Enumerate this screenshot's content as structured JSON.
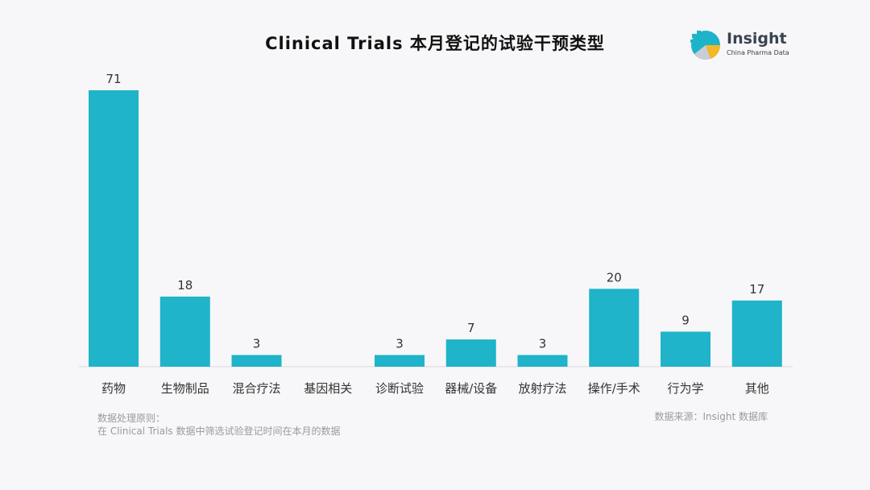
{
  "logo": {
    "name": "Insight",
    "subtitle": "China Pharma Data",
    "colors": [
      "#1db3c9",
      "#f3b924",
      "#c9ced6"
    ]
  },
  "footer": {
    "note_heading": "数据处理原则：",
    "note_text": "在 Clinical Trials 数据中筛选试验登记时间在本月的数据",
    "source": "数据来源：Insight 数据库"
  },
  "chart_data": {
    "type": "bar",
    "title": "Clinical Trials 本月登记的试验干预类型",
    "categories": [
      "药物",
      "生物制品",
      "混合疗法",
      "基因相关",
      "诊断试验",
      "器械/设备",
      "放射疗法",
      "操作/手术",
      "行为学",
      "其他"
    ],
    "values": [
      71,
      18,
      3,
      null,
      3,
      7,
      3,
      20,
      9,
      17
    ],
    "ylim": [
      0,
      71
    ],
    "grid": false,
    "bar_color": "#1fb4c9"
  }
}
